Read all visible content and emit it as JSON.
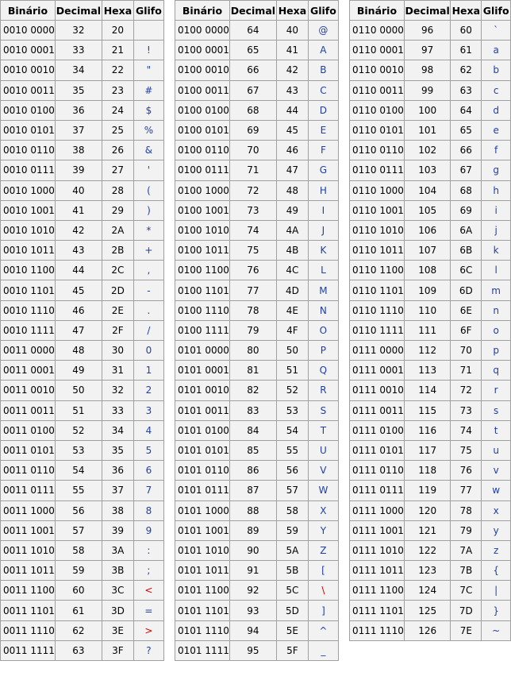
{
  "headers": [
    "Binário",
    "Decimal",
    "Hexa",
    "Glifo"
  ],
  "colors": {
    "glyph": "#1f3fa8",
    "glyph_special": "#cc0000",
    "cell_background": "#f2f2f2",
    "border": "#a0a0a0"
  },
  "tables": [
    {
      "rows": [
        [
          "0010 0000",
          "32",
          "20",
          ""
        ],
        [
          "0010 0001",
          "33",
          "21",
          "!"
        ],
        [
          "0010 0010",
          "34",
          "22",
          "\""
        ],
        [
          "0010 0011",
          "35",
          "23",
          "#"
        ],
        [
          "0010 0100",
          "36",
          "24",
          "$"
        ],
        [
          "0010 0101",
          "37",
          "25",
          "%"
        ],
        [
          "0010 0110",
          "38",
          "26",
          "&"
        ],
        [
          "0010 0111",
          "39",
          "27",
          "'"
        ],
        [
          "0010 1000",
          "40",
          "28",
          "("
        ],
        [
          "0010 1001",
          "41",
          "29",
          ")"
        ],
        [
          "0010 1010",
          "42",
          "2A",
          "*"
        ],
        [
          "0010 1011",
          "43",
          "2B",
          "+"
        ],
        [
          "0010 1100",
          "44",
          "2C",
          ","
        ],
        [
          "0010 1101",
          "45",
          "2D",
          "-"
        ],
        [
          "0010 1110",
          "46",
          "2E",
          "."
        ],
        [
          "0010 1111",
          "47",
          "2F",
          "/"
        ],
        [
          "0011 0000",
          "48",
          "30",
          "0"
        ],
        [
          "0011 0001",
          "49",
          "31",
          "1"
        ],
        [
          "0011 0010",
          "50",
          "32",
          "2"
        ],
        [
          "0011 0011",
          "51",
          "33",
          "3"
        ],
        [
          "0011 0100",
          "52",
          "34",
          "4"
        ],
        [
          "0011 0101",
          "53",
          "35",
          "5"
        ],
        [
          "0011 0110",
          "54",
          "36",
          "6"
        ],
        [
          "0011 0111",
          "55",
          "37",
          "7"
        ],
        [
          "0011 1000",
          "56",
          "38",
          "8"
        ],
        [
          "0011 1001",
          "57",
          "39",
          "9"
        ],
        [
          "0011 1010",
          "58",
          "3A",
          ":"
        ],
        [
          "0011 1011",
          "59",
          "3B",
          ";"
        ],
        [
          "0011 1100",
          "60",
          "3C",
          "<"
        ],
        [
          "0011 1101",
          "61",
          "3D",
          "="
        ],
        [
          "0011 1110",
          "62",
          "3E",
          ">"
        ],
        [
          "0011 1111",
          "63",
          "3F",
          "?"
        ]
      ]
    },
    {
      "rows": [
        [
          "0100 0000",
          "64",
          "40",
          "@"
        ],
        [
          "0100 0001",
          "65",
          "41",
          "A"
        ],
        [
          "0100 0010",
          "66",
          "42",
          "B"
        ],
        [
          "0100 0011",
          "67",
          "43",
          "C"
        ],
        [
          "0100 0100",
          "68",
          "44",
          "D"
        ],
        [
          "0100 0101",
          "69",
          "45",
          "E"
        ],
        [
          "0100 0110",
          "70",
          "46",
          "F"
        ],
        [
          "0100 0111",
          "71",
          "47",
          "G"
        ],
        [
          "0100 1000",
          "72",
          "48",
          "H"
        ],
        [
          "0100 1001",
          "73",
          "49",
          "I"
        ],
        [
          "0100 1010",
          "74",
          "4A",
          "J"
        ],
        [
          "0100 1011",
          "75",
          "4B",
          "K"
        ],
        [
          "0100 1100",
          "76",
          "4C",
          "L"
        ],
        [
          "0100 1101",
          "77",
          "4D",
          "M"
        ],
        [
          "0100 1110",
          "78",
          "4E",
          "N"
        ],
        [
          "0100 1111",
          "79",
          "4F",
          "O"
        ],
        [
          "0101 0000",
          "80",
          "50",
          "P"
        ],
        [
          "0101 0001",
          "81",
          "51",
          "Q"
        ],
        [
          "0101 0010",
          "82",
          "52",
          "R"
        ],
        [
          "0101 0011",
          "83",
          "53",
          "S"
        ],
        [
          "0101 0100",
          "84",
          "54",
          "T"
        ],
        [
          "0101 0101",
          "85",
          "55",
          "U"
        ],
        [
          "0101 0110",
          "86",
          "56",
          "V"
        ],
        [
          "0101 0111",
          "87",
          "57",
          "W"
        ],
        [
          "0101 1000",
          "88",
          "58",
          "X"
        ],
        [
          "0101 1001",
          "89",
          "59",
          "Y"
        ],
        [
          "0101 1010",
          "90",
          "5A",
          "Z"
        ],
        [
          "0101 1011",
          "91",
          "5B",
          "["
        ],
        [
          "0101 1100",
          "92",
          "5C",
          "\\"
        ],
        [
          "0101 1101",
          "93",
          "5D",
          "]"
        ],
        [
          "0101 1110",
          "94",
          "5E",
          "^"
        ],
        [
          "0101 1111",
          "95",
          "5F",
          "_"
        ]
      ]
    },
    {
      "rows": [
        [
          "0110 0000",
          "96",
          "60",
          "`"
        ],
        [
          "0110 0001",
          "97",
          "61",
          "a"
        ],
        [
          "0110 0010",
          "98",
          "62",
          "b"
        ],
        [
          "0110 0011",
          "99",
          "63",
          "c"
        ],
        [
          "0110 0100",
          "100",
          "64",
          "d"
        ],
        [
          "0110 0101",
          "101",
          "65",
          "e"
        ],
        [
          "0110 0110",
          "102",
          "66",
          "f"
        ],
        [
          "0110 0111",
          "103",
          "67",
          "g"
        ],
        [
          "0110 1000",
          "104",
          "68",
          "h"
        ],
        [
          "0110 1001",
          "105",
          "69",
          "i"
        ],
        [
          "0110 1010",
          "106",
          "6A",
          "j"
        ],
        [
          "0110 1011",
          "107",
          "6B",
          "k"
        ],
        [
          "0110 1100",
          "108",
          "6C",
          "l"
        ],
        [
          "0110 1101",
          "109",
          "6D",
          "m"
        ],
        [
          "0110 1110",
          "110",
          "6E",
          "n"
        ],
        [
          "0110 1111",
          "111",
          "6F",
          "o"
        ],
        [
          "0111 0000",
          "112",
          "70",
          "p"
        ],
        [
          "0111 0001",
          "113",
          "71",
          "q"
        ],
        [
          "0111 0010",
          "114",
          "72",
          "r"
        ],
        [
          "0111 0011",
          "115",
          "73",
          "s"
        ],
        [
          "0111 0100",
          "116",
          "74",
          "t"
        ],
        [
          "0111 0101",
          "117",
          "75",
          "u"
        ],
        [
          "0111 0110",
          "118",
          "76",
          "v"
        ],
        [
          "0111 0111",
          "119",
          "77",
          "w"
        ],
        [
          "0111 1000",
          "120",
          "78",
          "x"
        ],
        [
          "0111 1001",
          "121",
          "79",
          "y"
        ],
        [
          "0111 1010",
          "122",
          "7A",
          "z"
        ],
        [
          "0111 1011",
          "123",
          "7B",
          "{"
        ],
        [
          "0111 1100",
          "124",
          "7C",
          "|"
        ],
        [
          "0111 1101",
          "125",
          "7D",
          "}"
        ],
        [
          "0111 1110",
          "126",
          "7E",
          "~"
        ]
      ]
    }
  ]
}
